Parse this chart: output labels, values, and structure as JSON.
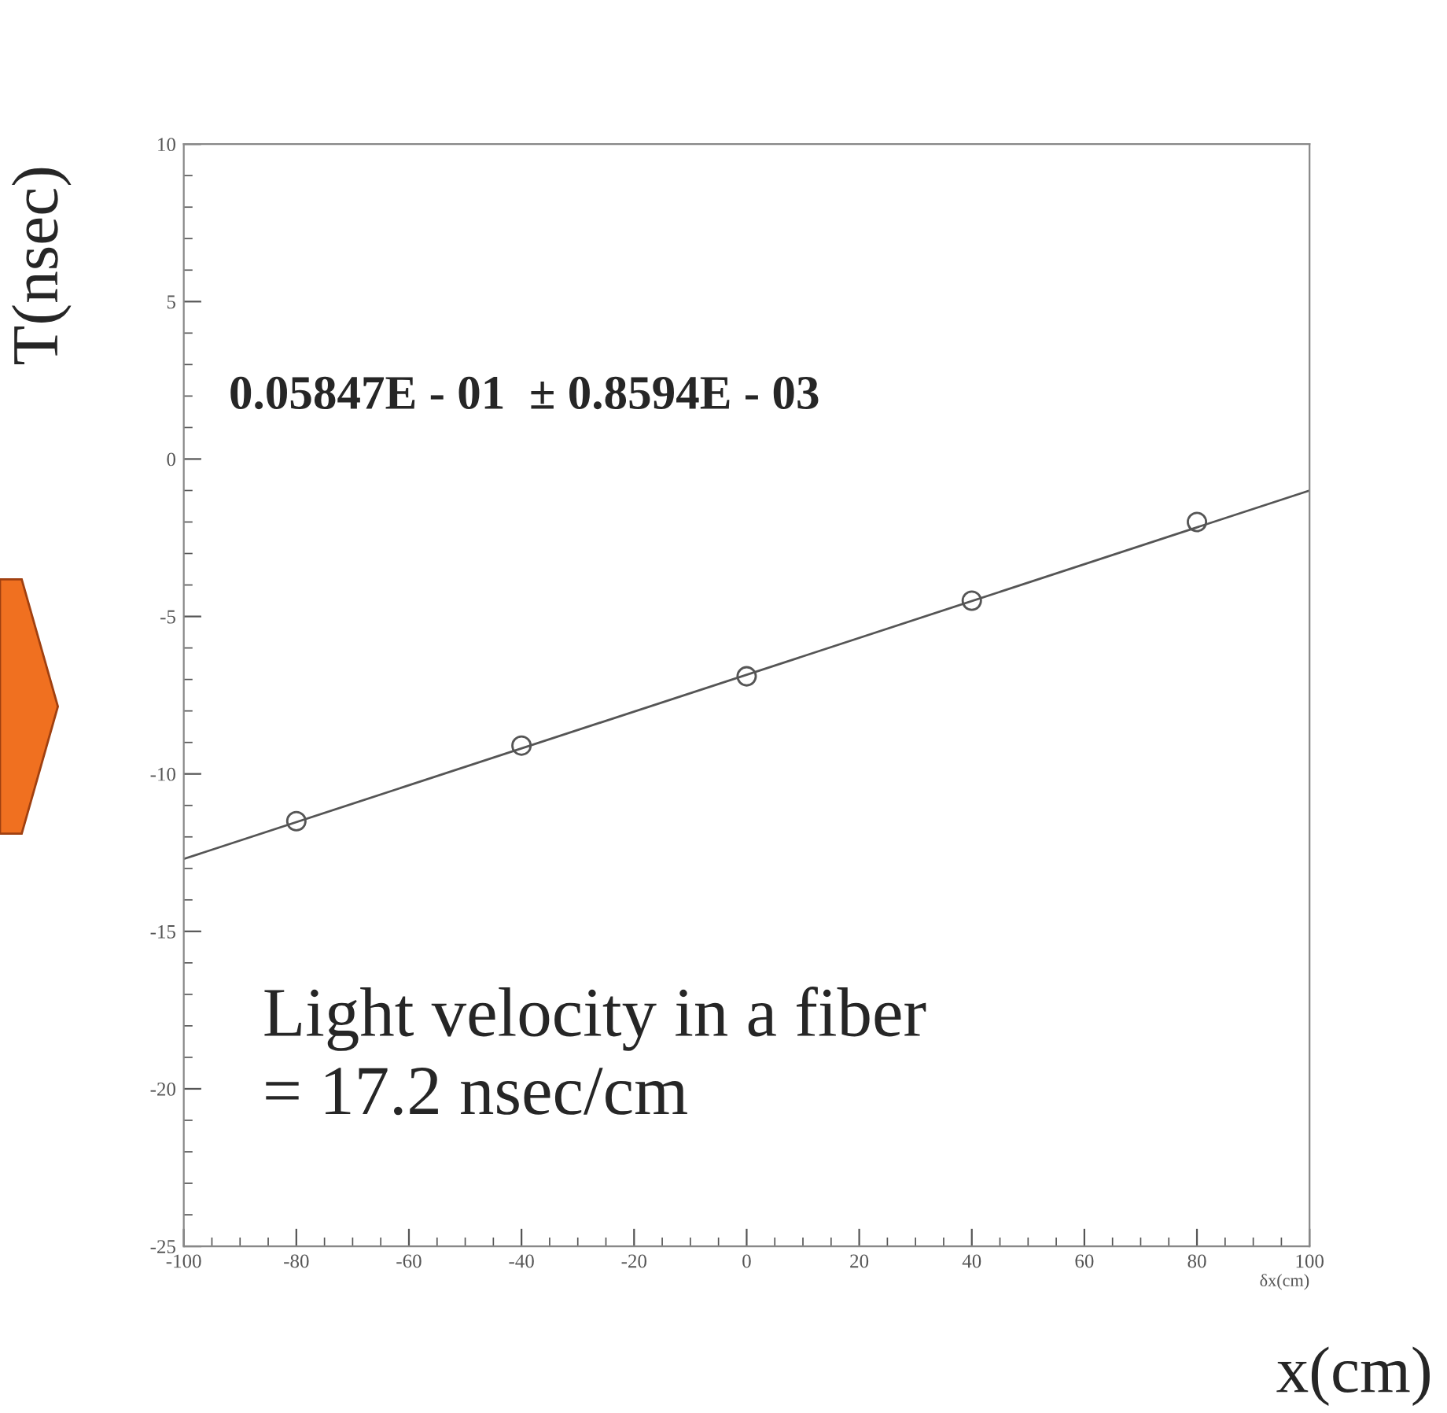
{
  "chart_data": {
    "type": "scatter",
    "x": [
      -80,
      -40,
      0,
      40,
      80
    ],
    "series": [
      {
        "color": "#555555",
        "marker": "circle",
        "values": [
          -11.5,
          -9.1,
          -6.9,
          -4.5,
          -2.0
        ]
      },
      {
        "type": "line",
        "color": "#555555",
        "x": [
          -100,
          100
        ],
        "values": [
          -12.7,
          -1.0
        ],
        "line_style": "solid"
      }
    ],
    "xlabel": "δx(cm)",
    "ylabel": "T(nsec)",
    "annotations": [
      "0.05847E - 01  ± 0.8594E - 03",
      "Light velocity in a fiber\n= 17.2 nsec/cm",
      "x(cm)"
    ],
    "xlim": [
      -100,
      100
    ],
    "xticks": [
      -100,
      -80,
      -60,
      -40,
      -20,
      0,
      20,
      40,
      60,
      80,
      100
    ],
    "ylim": [
      -25,
      10
    ],
    "yticks": [
      -25,
      -20,
      -15,
      -10,
      -5,
      0,
      5,
      10
    ],
    "grid": false
  }
}
